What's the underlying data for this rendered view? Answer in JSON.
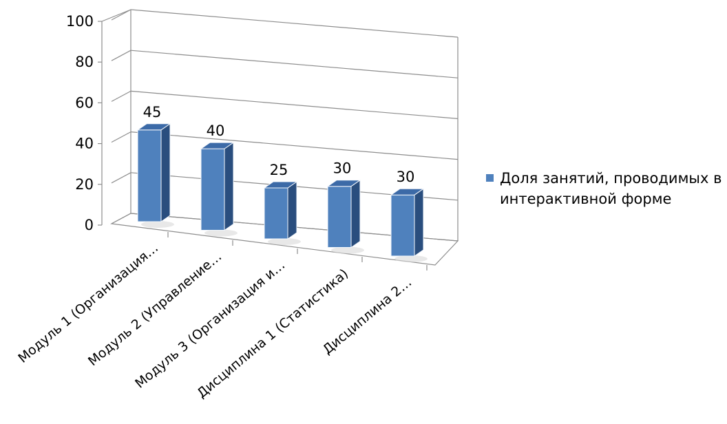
{
  "chart_data": {
    "type": "bar",
    "subtype": "3d-column",
    "categories": [
      "Модуль 1 (Организация…",
      "Модуль 2 (Управление…",
      "Модуль 3 (Организация и…",
      "Дисциплина 1 (Статистика)",
      "Дисциплина 2…"
    ],
    "series": [
      {
        "name": "Доля занятий, проводимых в интерактивной форме",
        "values": [
          45,
          40,
          25,
          30,
          30
        ]
      }
    ],
    "data_labels": [
      "45",
      "40",
      "25",
      "30",
      "30"
    ],
    "ylim": [
      0,
      100
    ],
    "yticks": [
      "0",
      "20",
      "40",
      "60",
      "80",
      "100"
    ],
    "grid": true,
    "legend_position": "right",
    "colors": {
      "bar_front": "#4F81BD",
      "bar_top": "#3C6AA7",
      "bar_side": "#2A4E7E",
      "grid": "#8C8C8C"
    }
  }
}
